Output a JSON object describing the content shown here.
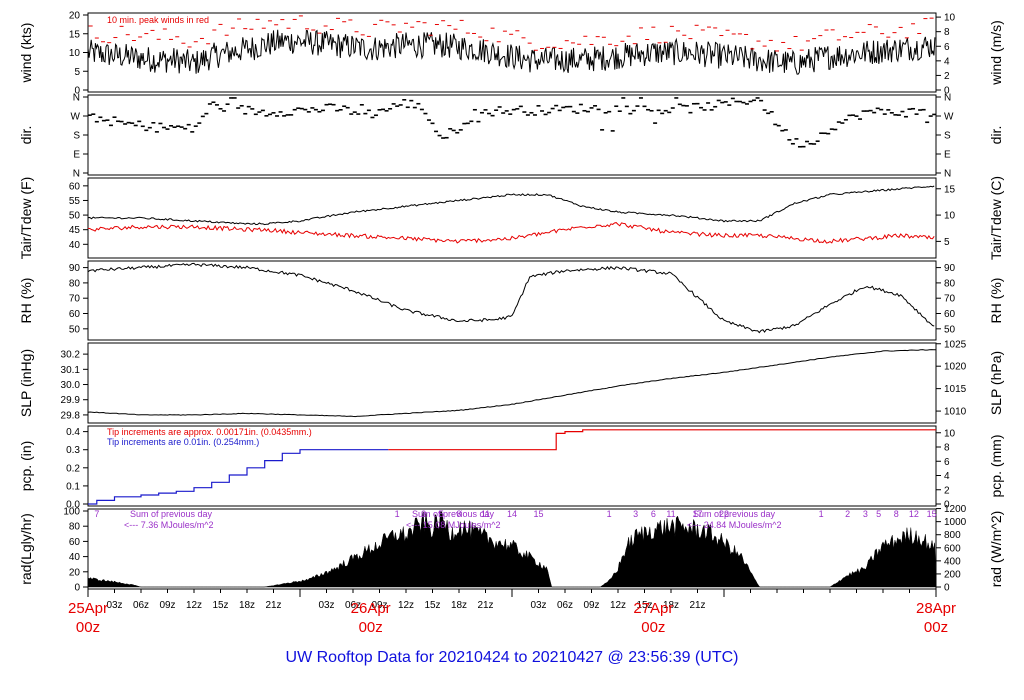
{
  "title": "UW Rooftop Data for 20210424  to  20210427 @ 23:56:39  (UTC)",
  "colors": {
    "red": "#e60000",
    "blue": "#1a1acc",
    "purple": "#9a30c8",
    "black": "#000000"
  },
  "x_axis": {
    "hour_labels": [
      "03z",
      "06z",
      "09z",
      "12z",
      "15z",
      "18z",
      "21z",
      "03z",
      "06z",
      "09z",
      "12z",
      "15z",
      "18z",
      "21z",
      "03z",
      "06z",
      "09z",
      "12z",
      "15z",
      "18z",
      "21z"
    ],
    "day_labels": [
      {
        "date": "25Apr",
        "time": "00z"
      },
      {
        "date": "26Apr",
        "time": "00z"
      },
      {
        "date": "27Apr",
        "time": "00z"
      },
      {
        "date": "28Apr",
        "time": "00z"
      }
    ]
  },
  "panels": {
    "wind": {
      "ylabel_left": "wind (kts)",
      "ylabel_right": "wind (m/s)",
      "left_ticks": [
        "0",
        "5",
        "10",
        "15",
        "20"
      ],
      "right_ticks": [
        "0",
        "2",
        "4",
        "6",
        "8",
        "10"
      ],
      "annotation": "10 min. peak winds in red"
    },
    "dir": {
      "ylabel_left": "dir.",
      "ylabel_right": "dir.",
      "left_ticks": [
        "N",
        "E",
        "S",
        "W",
        "N"
      ],
      "right_ticks": [
        "N",
        "E",
        "S",
        "W",
        "N"
      ]
    },
    "temp": {
      "ylabel_left": "Tair/Tdew (F)",
      "ylabel_right": "Tair/Tdew (C)",
      "left_ticks": [
        "40",
        "45",
        "50",
        "55",
        "60"
      ],
      "right_ticks": [
        "5",
        "10",
        "15"
      ]
    },
    "rh": {
      "ylabel_left": "RH (%)",
      "ylabel_right": "RH (%)",
      "left_ticks": [
        "50",
        "60",
        "70",
        "80",
        "90"
      ],
      "right_ticks": [
        "50",
        "60",
        "70",
        "80",
        "90"
      ]
    },
    "slp": {
      "ylabel_left": "SLP (inHg)",
      "ylabel_right": "SLP (hPa)",
      "left_ticks": [
        "29.8",
        "29.9",
        "30.0",
        "30.1",
        "30.2"
      ],
      "right_ticks": [
        "1010",
        "1015",
        "1020",
        "1025"
      ]
    },
    "pcp": {
      "ylabel_left": "pcp. (in)",
      "ylabel_right": "pcp. (mm)",
      "left_ticks": [
        "0.0",
        "0.1",
        "0.2",
        "0.3",
        "0.4"
      ],
      "right_ticks": [
        "0",
        "2",
        "4",
        "6",
        "8",
        "10"
      ],
      "note_red": "Tip increments are approx. 0.00171in. (0.0435mm.)",
      "note_blue": "Tip increments are 0.01in.  (0.254mm.)"
    },
    "rad": {
      "ylabel_left": "rad(Lgly/hr)",
      "ylabel_right": "rad (W/m^2)",
      "left_ticks": [
        "0",
        "20",
        "40",
        "60",
        "80",
        "100"
      ],
      "right_ticks": [
        "0",
        "200",
        "400",
        "600",
        "800",
        "1000",
        "1200"
      ],
      "sum_label": "Sum of previous day",
      "sums": [
        "<--- 7.36 MJoules/m^2",
        "<--- 15.08 MJoules/m^2",
        "<--- 24.84 MJoules/m^2"
      ],
      "hour_marks": [
        {
          "t": 1,
          "label": "7"
        },
        {
          "t": 35,
          "label": "1"
        },
        {
          "t": 38,
          "label": "3"
        },
        {
          "t": 40,
          "label": "5"
        },
        {
          "t": 42,
          "label": "8"
        },
        {
          "t": 45,
          "label": "11"
        },
        {
          "t": 48,
          "label": "14"
        },
        {
          "t": 51,
          "label": "15"
        },
        {
          "t": 59,
          "label": "1"
        },
        {
          "t": 62,
          "label": "3"
        },
        {
          "t": 64,
          "label": "6"
        },
        {
          "t": 66,
          "label": "11"
        },
        {
          "t": 69,
          "label": "17"
        },
        {
          "t": 72,
          "label": "22"
        },
        {
          "t": 83,
          "label": "1"
        },
        {
          "t": 86,
          "label": "2"
        },
        {
          "t": 88,
          "label": "3"
        },
        {
          "t": 89.5,
          "label": "5"
        },
        {
          "t": 91.5,
          "label": "8"
        },
        {
          "t": 93.5,
          "label": "12"
        },
        {
          "t": 95.5,
          "label": "15"
        }
      ]
    }
  },
  "chart_data": [
    {
      "type": "line",
      "panel": "wind",
      "x_unit": "hours since 2021-04-24 00z",
      "series": [
        {
          "x": [
            0,
            4,
            8,
            10,
            12,
            14,
            16,
            18,
            20,
            22,
            24,
            28,
            32,
            36,
            40,
            44,
            48,
            50,
            52,
            56,
            60,
            64,
            68,
            72,
            76,
            80,
            84,
            88,
            92,
            96
          ],
          "y": [
            10,
            9,
            8,
            8,
            7,
            9,
            10,
            11,
            12,
            13,
            13,
            12,
            11,
            12,
            12,
            11,
            9,
            8,
            8,
            8,
            9,
            10,
            10,
            9,
            8,
            7,
            9,
            10,
            11,
            12
          ]
        },
        {
          "name": "10 min. peak winds in red",
          "x": [
            0,
            4,
            8,
            10,
            12,
            14,
            16,
            18,
            20,
            22,
            24,
            28,
            32,
            36,
            40,
            44,
            48,
            50,
            52,
            56,
            60,
            64,
            68,
            72,
            76,
            80,
            84,
            88,
            92,
            96
          ],
          "y": [
            15,
            15,
            14,
            14,
            13,
            15,
            16,
            17,
            18,
            18,
            18,
            17,
            16,
            17,
            17,
            16,
            14,
            13,
            13,
            13,
            14,
            15,
            15,
            14,
            13,
            12,
            14,
            15,
            16,
            17
          ]
        }
      ],
      "ylim": [
        0,
        20
      ]
    },
    {
      "type": "scatter",
      "panel": "dir",
      "x_unit": "hours since 2021-04-24 00z",
      "series": [
        {
          "x": [
            0,
            4,
            8,
            10,
            12,
            14,
            16,
            20,
            24,
            28,
            32,
            36,
            38,
            40,
            42,
            44,
            48,
            52,
            56,
            60,
            64,
            68,
            72,
            74,
            76,
            78,
            80,
            82,
            84,
            88,
            92,
            96
          ],
          "y": [
            3.0,
            2.6,
            2.4,
            2.4,
            2.3,
            3.6,
            3.4,
            3.2,
            3.3,
            3.4,
            3.1,
            3.7,
            3.4,
            1.8,
            2.4,
            3.2,
            3.3,
            3.3,
            3.4,
            3.4,
            3.3,
            3.4,
            3.6,
            3.8,
            3.9,
            2.6,
            1.6,
            1.6,
            2.4,
            3.2,
            3.2,
            3.2
          ]
        }
      ],
      "ylim": [
        0,
        4
      ]
    },
    {
      "type": "line",
      "panel": "temp",
      "x_unit": "hours since 2021-04-24 00z",
      "series": [
        {
          "x": [
            0,
            6,
            12,
            18,
            20,
            24,
            30,
            36,
            42,
            48,
            52,
            56,
            60,
            66,
            72,
            76,
            80,
            84,
            88,
            92,
            96
          ],
          "y": [
            49,
            49,
            48,
            47,
            47,
            48,
            51,
            53,
            55,
            57,
            57,
            53,
            51,
            50,
            48,
            48,
            54,
            57,
            58,
            59,
            60
          ]
        },
        {
          "x": [
            0,
            6,
            12,
            18,
            20,
            24,
            30,
            36,
            42,
            48,
            52,
            56,
            60,
            66,
            72,
            76,
            80,
            84,
            88,
            92,
            96
          ],
          "y": [
            45,
            46,
            46,
            45,
            45,
            44,
            43,
            42,
            41,
            42,
            44,
            46,
            47,
            44,
            43,
            43,
            42,
            41,
            42,
            43,
            42
          ]
        }
      ],
      "ylim": [
        36,
        62
      ]
    },
    {
      "type": "line",
      "panel": "rh",
      "x_unit": "hours since 2021-04-24 00z",
      "series": [
        {
          "x": [
            0,
            6,
            12,
            18,
            24,
            30,
            36,
            42,
            46,
            48,
            50,
            54,
            60,
            66,
            72,
            76,
            80,
            84,
            88,
            92,
            96
          ],
          "y": [
            88,
            90,
            92,
            90,
            85,
            75,
            62,
            55,
            56,
            58,
            84,
            88,
            90,
            86,
            55,
            48,
            52,
            66,
            78,
            72,
            50
          ]
        }
      ],
      "ylim": [
        44,
        93
      ]
    },
    {
      "type": "line",
      "panel": "slp",
      "x_unit": "hours since 2021-04-24 00z",
      "series": [
        {
          "x": [
            0,
            6,
            12,
            18,
            24,
            30,
            36,
            42,
            48,
            54,
            60,
            66,
            72,
            78,
            84,
            90,
            96
          ],
          "y": [
            29.82,
            29.8,
            29.8,
            29.81,
            29.8,
            29.79,
            29.81,
            29.83,
            29.87,
            29.93,
            29.99,
            30.04,
            30.08,
            30.13,
            30.18,
            30.22,
            30.23
          ]
        }
      ],
      "ylim": [
        29.76,
        30.26
      ]
    },
    {
      "type": "line",
      "panel": "pcp",
      "x_unit": "hours since 2021-04-24 00z",
      "series": [
        {
          "name": "Tip increments are 0.01in.  (0.254mm.)",
          "x": [
            0,
            1,
            3,
            6,
            8,
            10,
            12,
            14,
            16,
            18,
            20,
            22,
            24,
            26,
            28,
            30,
            32,
            34
          ],
          "y": [
            0,
            0.02,
            0.04,
            0.05,
            0.06,
            0.07,
            0.09,
            0.12,
            0.16,
            0.2,
            0.24,
            0.28,
            0.3,
            0.3,
            0.3,
            0.3,
            0.3,
            0.3
          ]
        },
        {
          "name": "Tip increments are approx. 0.00171in. (0.0435mm.)",
          "x": [
            34,
            40,
            48,
            52,
            53,
            54,
            56,
            58,
            60,
            66,
            72,
            78,
            84,
            90,
            96
          ],
          "y": [
            0.3,
            0.3,
            0.3,
            0.3,
            0.39,
            0.4,
            0.41,
            0.41,
            0.41,
            0.41,
            0.41,
            0.41,
            0.41,
            0.41,
            0.41
          ]
        }
      ],
      "ylim": [
        0,
        0.42
      ]
    },
    {
      "type": "area",
      "panel": "rad",
      "x_unit": "hours since 2021-04-24 00z",
      "series": [
        {
          "x": [
            0,
            1,
            3,
            5,
            6,
            20,
            21,
            25,
            28,
            31,
            33,
            35,
            36,
            38,
            39,
            40,
            41,
            42,
            44,
            46,
            48,
            50,
            52,
            52.5,
            58,
            59,
            60,
            61,
            62,
            64,
            66,
            68,
            70,
            72,
            74,
            75,
            76,
            84,
            85,
            86,
            88,
            89,
            90,
            91,
            92,
            93,
            94,
            95,
            96
          ],
          "y": [
            12,
            10,
            7,
            3,
            0,
            0,
            2,
            10,
            25,
            45,
            58,
            72,
            70,
            88,
            78,
            95,
            72,
            82,
            72,
            62,
            55,
            40,
            25,
            0,
            0,
            8,
            25,
            55,
            68,
            78,
            82,
            80,
            75,
            60,
            40,
            20,
            0,
            0,
            8,
            16,
            25,
            42,
            56,
            60,
            66,
            70,
            68,
            60,
            50
          ]
        }
      ],
      "ylim": [
        0,
        100
      ]
    }
  ]
}
